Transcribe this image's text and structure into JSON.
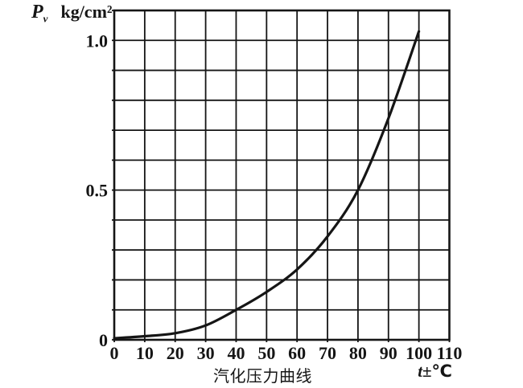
{
  "figure": {
    "background": "#ffffff",
    "ink_color": "#151515"
  },
  "chart_data": {
    "type": "line",
    "title": "汽化压力曲线",
    "ylabel": "P v kg/cm²",
    "ylabel_parts": {
      "symbol": "P",
      "subscript": "v",
      "unit": "kg/cm²"
    },
    "xlabel": "t±℃",
    "xlabel_parts": {
      "symbol": "t",
      "suffix": "±℃"
    },
    "xlim": [
      0,
      110
    ],
    "ylim": [
      0,
      1.1
    ],
    "x_grid_step": 10,
    "y_grid_step": 0.1,
    "grid": true,
    "legend": "none",
    "x_ticks": [
      0,
      10,
      20,
      30,
      40,
      50,
      60,
      70,
      80,
      90,
      100,
      110
    ],
    "y_ticks": [
      {
        "value": 0,
        "label": "0"
      },
      {
        "value": 0.5,
        "label": "0.5"
      },
      {
        "value": 1.0,
        "label": "1.0"
      }
    ],
    "series": [
      {
        "name": "汽化压力曲线",
        "color": "#151515",
        "x": [
          0,
          10,
          20,
          30,
          40,
          50,
          60,
          70,
          80,
          90,
          100
        ],
        "y": [
          0.005,
          0.012,
          0.022,
          0.048,
          0.1,
          0.16,
          0.235,
          0.345,
          0.5,
          0.74,
          1.03
        ]
      }
    ]
  }
}
